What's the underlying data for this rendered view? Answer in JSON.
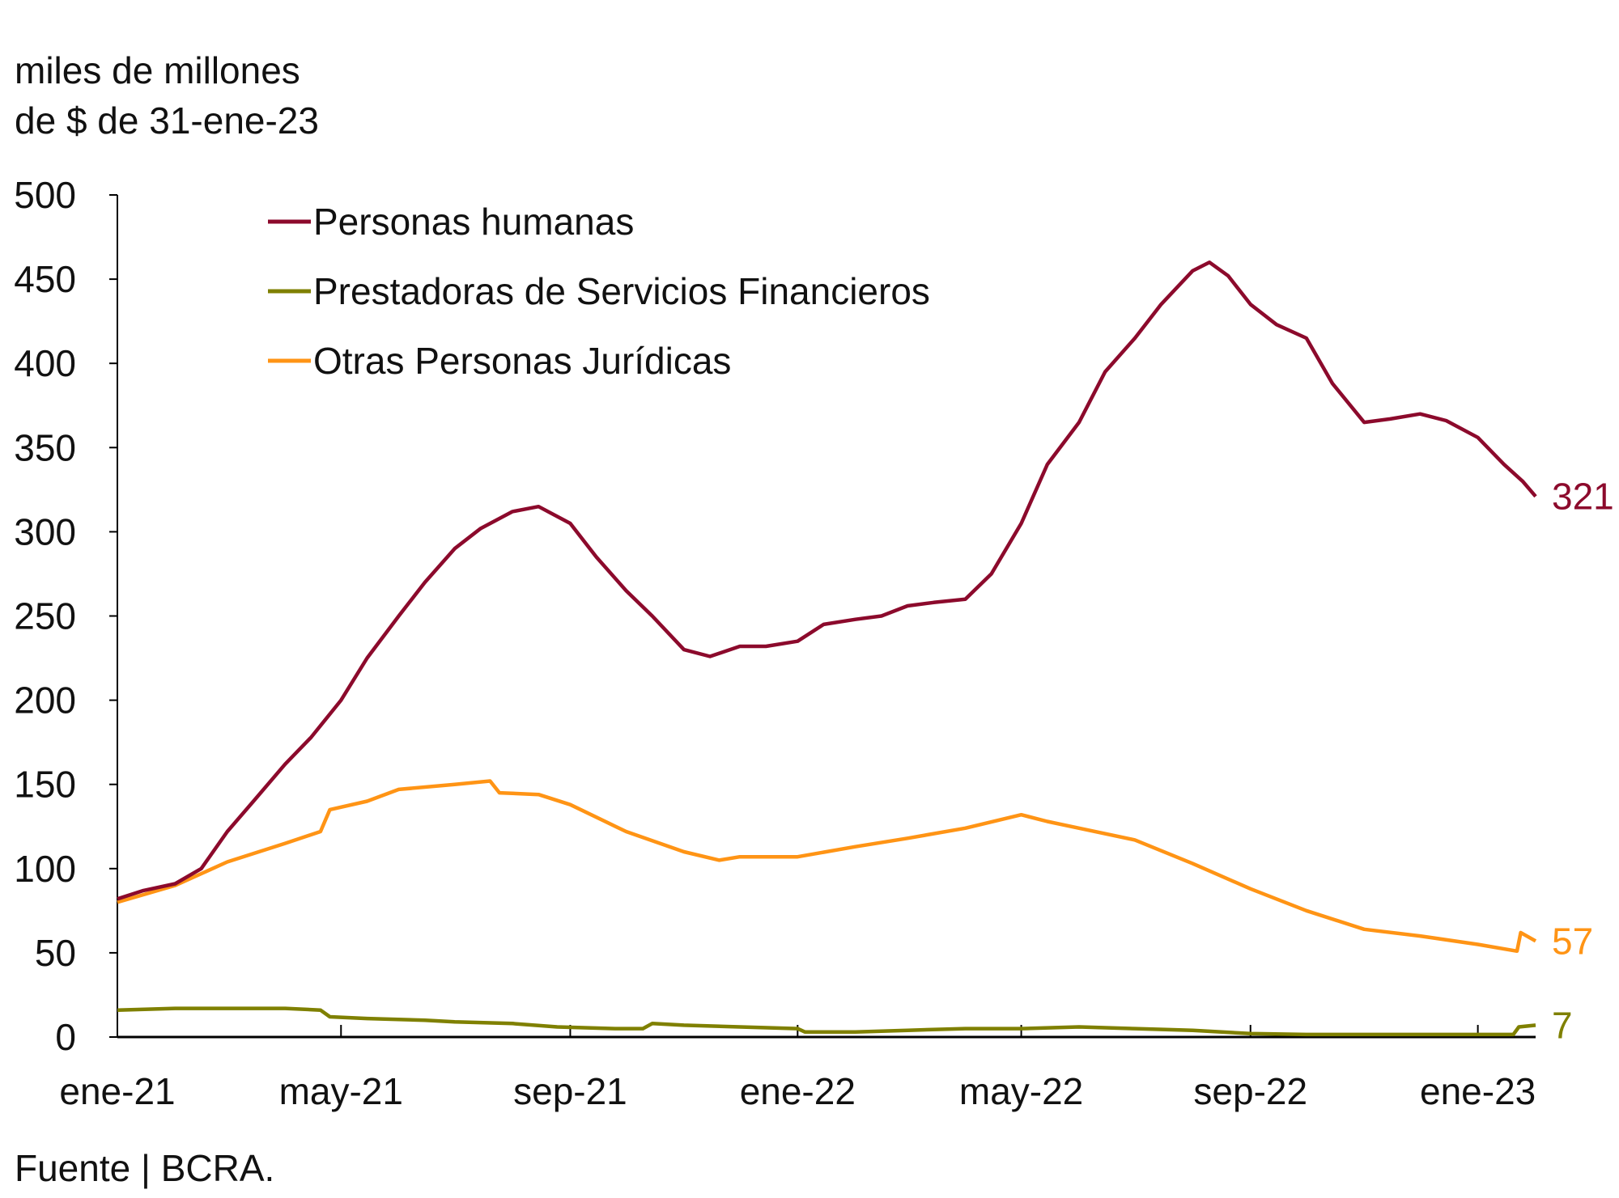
{
  "chart_data": {
    "type": "line",
    "title": "",
    "ylabel_lines": [
      "miles de millones",
      "de $ de 31-ene-23"
    ],
    "xlabel": "",
    "ylim": [
      0,
      500
    ],
    "yticks": [
      0,
      50,
      100,
      150,
      200,
      250,
      300,
      350,
      400,
      450,
      500
    ],
    "xlim": [
      "2021-01-01",
      "2023-02-01"
    ],
    "xticks": [
      {
        "date": "2021-01-01",
        "label": "ene-21"
      },
      {
        "date": "2021-05-01",
        "label": "may-21"
      },
      {
        "date": "2021-09-01",
        "label": "sep-21"
      },
      {
        "date": "2022-01-01",
        "label": "ene-22"
      },
      {
        "date": "2022-05-01",
        "label": "may-22"
      },
      {
        "date": "2022-09-01",
        "label": "sep-22"
      },
      {
        "date": "2023-01-01",
        "label": "ene-23"
      }
    ],
    "grid": false,
    "legend_position": "top-left",
    "series": [
      {
        "name": "Personas humanas",
        "color": "#8C0A2C",
        "end_label": "321",
        "points": [
          [
            "2021-01-01",
            82
          ],
          [
            "2021-01-15",
            87
          ],
          [
            "2021-02-01",
            91
          ],
          [
            "2021-02-15",
            100
          ],
          [
            "2021-03-01",
            122
          ],
          [
            "2021-03-15",
            140
          ],
          [
            "2021-04-01",
            162
          ],
          [
            "2021-04-15",
            178
          ],
          [
            "2021-05-01",
            200
          ],
          [
            "2021-05-15",
            225
          ],
          [
            "2021-06-01",
            250
          ],
          [
            "2021-06-15",
            270
          ],
          [
            "2021-07-01",
            290
          ],
          [
            "2021-07-15",
            302
          ],
          [
            "2021-08-01",
            312
          ],
          [
            "2021-08-15",
            315
          ],
          [
            "2021-09-01",
            305
          ],
          [
            "2021-09-15",
            285
          ],
          [
            "2021-10-01",
            265
          ],
          [
            "2021-10-15",
            250
          ],
          [
            "2021-11-01",
            230
          ],
          [
            "2021-11-15",
            226
          ],
          [
            "2021-12-01",
            232
          ],
          [
            "2021-12-15",
            232
          ],
          [
            "2022-01-01",
            235
          ],
          [
            "2022-01-15",
            245
          ],
          [
            "2022-02-01",
            248
          ],
          [
            "2022-02-15",
            250
          ],
          [
            "2022-03-01",
            256
          ],
          [
            "2022-03-15",
            258
          ],
          [
            "2022-04-01",
            260
          ],
          [
            "2022-04-15",
            275
          ],
          [
            "2022-05-01",
            305
          ],
          [
            "2022-05-15",
            340
          ],
          [
            "2022-06-01",
            365
          ],
          [
            "2022-06-15",
            395
          ],
          [
            "2022-07-01",
            415
          ],
          [
            "2022-07-15",
            435
          ],
          [
            "2022-08-01",
            455
          ],
          [
            "2022-08-10",
            460
          ],
          [
            "2022-08-20",
            452
          ],
          [
            "2022-09-01",
            435
          ],
          [
            "2022-09-15",
            423
          ],
          [
            "2022-10-01",
            415
          ],
          [
            "2022-10-15",
            388
          ],
          [
            "2022-11-01",
            365
          ],
          [
            "2022-11-15",
            367
          ],
          [
            "2022-12-01",
            370
          ],
          [
            "2022-12-15",
            366
          ],
          [
            "2023-01-01",
            356
          ],
          [
            "2023-01-15",
            340
          ],
          [
            "2023-01-25",
            330
          ],
          [
            "2023-02-01",
            321
          ]
        ]
      },
      {
        "name": "Prestadoras de Servicios Financieros",
        "color": "#7F8000",
        "end_label": "7",
        "points": [
          [
            "2021-01-01",
            16
          ],
          [
            "2021-02-01",
            17
          ],
          [
            "2021-03-01",
            17
          ],
          [
            "2021-04-01",
            17
          ],
          [
            "2021-04-20",
            16
          ],
          [
            "2021-04-25",
            12
          ],
          [
            "2021-05-15",
            11
          ],
          [
            "2021-06-15",
            10
          ],
          [
            "2021-07-01",
            9
          ],
          [
            "2021-08-01",
            8
          ],
          [
            "2021-08-25",
            6
          ],
          [
            "2021-09-25",
            5
          ],
          [
            "2021-10-10",
            5
          ],
          [
            "2021-10-15",
            8
          ],
          [
            "2021-11-01",
            7
          ],
          [
            "2021-12-01",
            6
          ],
          [
            "2022-01-01",
            5
          ],
          [
            "2022-01-05",
            3
          ],
          [
            "2022-02-01",
            3
          ],
          [
            "2022-03-01",
            4
          ],
          [
            "2022-04-01",
            5
          ],
          [
            "2022-05-01",
            5
          ],
          [
            "2022-06-01",
            6
          ],
          [
            "2022-07-01",
            5
          ],
          [
            "2022-08-01",
            4
          ],
          [
            "2022-09-01",
            2
          ],
          [
            "2022-10-01",
            1.5
          ],
          [
            "2022-11-01",
            1.5
          ],
          [
            "2022-12-01",
            1.5
          ],
          [
            "2023-01-01",
            1.5
          ],
          [
            "2023-01-20",
            1.5
          ],
          [
            "2023-01-23",
            6
          ],
          [
            "2023-02-01",
            7
          ]
        ]
      },
      {
        "name": "Otras Personas Jurídicas",
        "color": "#FF9415",
        "end_label": "57",
        "points": [
          [
            "2021-01-01",
            80
          ],
          [
            "2021-02-01",
            90
          ],
          [
            "2021-03-01",
            104
          ],
          [
            "2021-04-01",
            115
          ],
          [
            "2021-04-20",
            122
          ],
          [
            "2021-04-25",
            135
          ],
          [
            "2021-05-15",
            140
          ],
          [
            "2021-06-01",
            147
          ],
          [
            "2021-07-01",
            150
          ],
          [
            "2021-07-20",
            152
          ],
          [
            "2021-07-25",
            145
          ],
          [
            "2021-08-15",
            144
          ],
          [
            "2021-09-01",
            138
          ],
          [
            "2021-10-01",
            122
          ],
          [
            "2021-11-01",
            110
          ],
          [
            "2021-11-20",
            105
          ],
          [
            "2021-12-01",
            107
          ],
          [
            "2022-01-01",
            107
          ],
          [
            "2022-02-01",
            113
          ],
          [
            "2022-03-01",
            118
          ],
          [
            "2022-04-01",
            124
          ],
          [
            "2022-05-01",
            132
          ],
          [
            "2022-05-15",
            128
          ],
          [
            "2022-06-01",
            124
          ],
          [
            "2022-07-01",
            117
          ],
          [
            "2022-08-01",
            103
          ],
          [
            "2022-09-01",
            88
          ],
          [
            "2022-10-01",
            75
          ],
          [
            "2022-11-01",
            64
          ],
          [
            "2022-12-01",
            60
          ],
          [
            "2023-01-01",
            55
          ],
          [
            "2023-01-22",
            51
          ],
          [
            "2023-01-24",
            62
          ],
          [
            "2023-02-01",
            57
          ]
        ]
      }
    ]
  },
  "source": "Fuente | BCRA."
}
